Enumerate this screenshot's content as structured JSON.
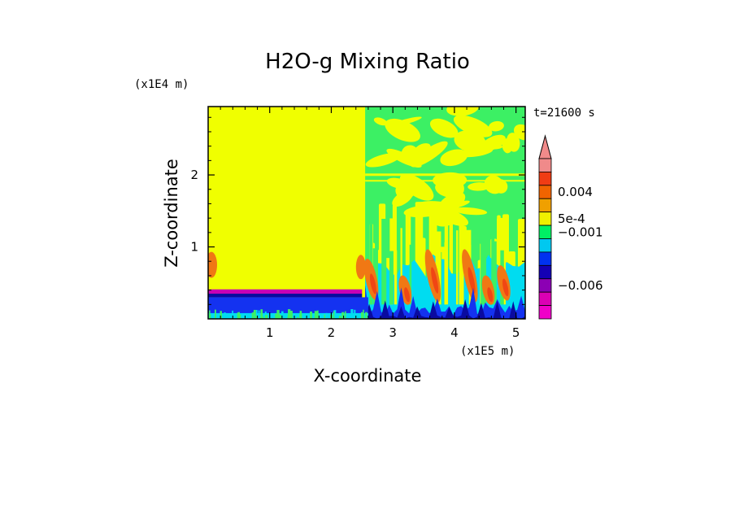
{
  "chart_data": {
    "type": "heatmap",
    "title": "H2O-g Mixing Ratio",
    "time_label": "t=21600 s",
    "xlabel": "X-coordinate",
    "ylabel": "Z-coordinate",
    "x_scale_label": "(x1E5 m)",
    "y_scale_label": "(x1E4 m)",
    "xlim": [
      0,
      5.15
    ],
    "ylim": [
      0,
      2.95
    ],
    "x_ticks": [
      "1",
      "2",
      "3",
      "4",
      "5"
    ],
    "x_tick_values": [
      1,
      2,
      3,
      4,
      5
    ],
    "y_ticks": [
      "1",
      "2"
    ],
    "y_tick_values": [
      1,
      2
    ],
    "colorbar": {
      "levels_top_to_bottom": [
        "#f08a8a",
        "#f03c14",
        "#f06400",
        "#f0a000",
        "#f0f000",
        "#00f064",
        "#00c8f0",
        "#0032f0",
        "#1400b4",
        "#8c00b4",
        "#dc00b4",
        "#f000c8"
      ],
      "labels": [
        {
          "text": "0.004",
          "level_index": 2
        },
        {
          "text": "5e-4",
          "level_index": 4
        },
        {
          "text": "−0.001",
          "level_index": 5
        },
        {
          "text": "−0.006",
          "level_index": 9
        }
      ]
    },
    "field_colors": {
      "yellow": "#f0ff00",
      "green": "#3cf064",
      "cyan": "#00dcf0",
      "blue": "#1432f0",
      "navy": "#0a0aa0",
      "magenta": "#c800b4",
      "orange": "#f07814",
      "red": "#f04614"
    }
  }
}
